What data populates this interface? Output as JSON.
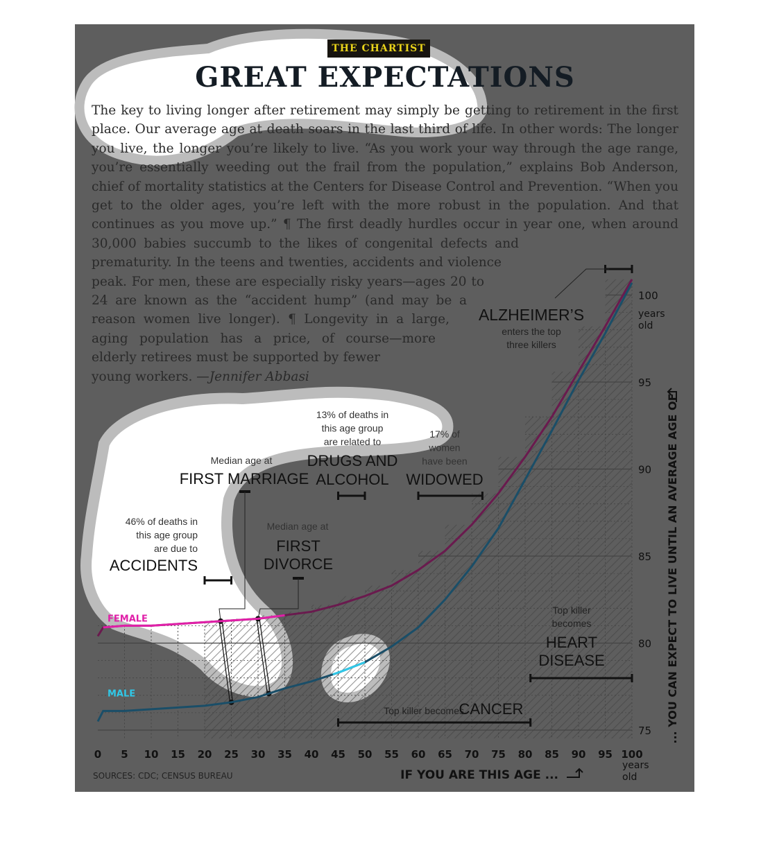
{
  "badge": "THE CHARTIST",
  "headline": "GREAT EXPECTATIONS",
  "article": {
    "body": "The key to living longer after retirement may simply be getting to retirement in the first place. Our average age at death soars in the last third of life. In other words: The longer you live, the longer you’re likely to live. “As you work your way through the age range, you’re essentially weeding out the frail from the population,” explains Bob Anderson, chief of mortality statistics at the Centers for Disease Control and Prevention. “When you get to the older ages, you’re left with the more robust in the population. And that continues as you move up.” ¶ The first deadly hurdles occur in year one, when around 30,000 babies succumb to the likes of congenital defects and prematurity. In the teens and twenties, accidents and violence peak. For men, these are especially risky years—ages 20 to 24 are known as the “accident hump” (and may be a reason women live longer). ¶ Longevity in a large, aging population has a price, of course—more elderly retirees must be supported by fewer young workers.",
    "byline": "—Jennifer Abbasi"
  },
  "colors": {
    "panel": "#5e5e5e",
    "female": "#6a1a4e",
    "female_highlight": "#e020a8",
    "male": "#1a4e68",
    "male_highlight": "#30c8e8",
    "badge_bg": "#17140f",
    "badge_text": "#e8d21a",
    "annotation": "#111111"
  },
  "chart_data": {
    "type": "line",
    "xlabel": "IF YOU ARE THIS AGE ...",
    "ylabel": "... YOU CAN EXPECT TO LIVE UNTIL AN AVERAGE AGE OF",
    "xlim": [
      0,
      100
    ],
    "ylim": [
      75,
      101
    ],
    "x_ticks": [
      "0",
      "5",
      "10",
      "15",
      "20",
      "25",
      "30",
      "35",
      "40",
      "45",
      "50",
      "55",
      "60",
      "65",
      "70",
      "75",
      "80",
      "85",
      "90",
      "95",
      "100"
    ],
    "x_unit": "years old",
    "y_ticks": [
      "75",
      "80",
      "85",
      "90",
      "95",
      "100"
    ],
    "y_unit": "years old",
    "grid": true,
    "source": "SOURCES: CDC; CENSUS BUREAU",
    "x": [
      0,
      1,
      5,
      10,
      15,
      20,
      25,
      30,
      35,
      40,
      45,
      50,
      55,
      60,
      65,
      70,
      75,
      80,
      85,
      90,
      95,
      100
    ],
    "series": [
      {
        "name": "FEMALE",
        "values": [
          80.4,
          80.9,
          81.0,
          81.0,
          81.1,
          81.2,
          81.3,
          81.4,
          81.6,
          81.8,
          82.2,
          82.7,
          83.3,
          84.2,
          85.3,
          86.8,
          88.6,
          90.7,
          93.0,
          95.6,
          98.2,
          100.9
        ]
      },
      {
        "name": "MALE",
        "values": [
          75.5,
          76.1,
          76.1,
          76.2,
          76.3,
          76.4,
          76.6,
          76.9,
          77.4,
          77.8,
          78.3,
          78.9,
          79.8,
          80.9,
          82.5,
          84.4,
          86.6,
          89.4,
          92.2,
          95.1,
          97.8,
          100.7
        ]
      }
    ],
    "annotations": [
      {
        "id": "accidents",
        "range": [
          20,
          25
        ],
        "pre": [
          "46% of deaths in",
          "this age group",
          "are due to"
        ],
        "big": [
          "ACCIDENTS"
        ]
      },
      {
        "id": "first-marriage",
        "marks": {
          "female": 23,
          "male": 25
        },
        "pre": [
          "Median age at"
        ],
        "big": [
          "FIRST MARRIAGE"
        ]
      },
      {
        "id": "first-divorce",
        "marks": {
          "female": 30,
          "male": 32
        },
        "pre": [
          "Median age at"
        ],
        "big": [
          "FIRST",
          "DIVORCE"
        ]
      },
      {
        "id": "drugs-alcohol",
        "range": [
          45,
          50
        ],
        "pre": [
          "13% of deaths in",
          "this age group",
          "are related to"
        ],
        "big": [
          "DRUGS AND",
          "ALCOHOL"
        ]
      },
      {
        "id": "widowed",
        "range": [
          60,
          72
        ],
        "pre": [
          "17% of",
          "women",
          "have been"
        ],
        "big": [
          "WIDOWED"
        ]
      },
      {
        "id": "alzheimers",
        "range": [
          95,
          100
        ],
        "big": [
          "ALZHEIMER’S"
        ],
        "post": [
          "enters the top",
          "three killers"
        ]
      },
      {
        "id": "heart-disease",
        "range": [
          81,
          100
        ],
        "pre": [
          "Top killer",
          "becomes"
        ],
        "big": [
          "HEART",
          "DISEASE"
        ]
      },
      {
        "id": "cancer",
        "range": [
          45,
          81
        ],
        "pre": [
          "Top killer becomes"
        ],
        "big": [
          "CANCER"
        ]
      }
    ]
  }
}
